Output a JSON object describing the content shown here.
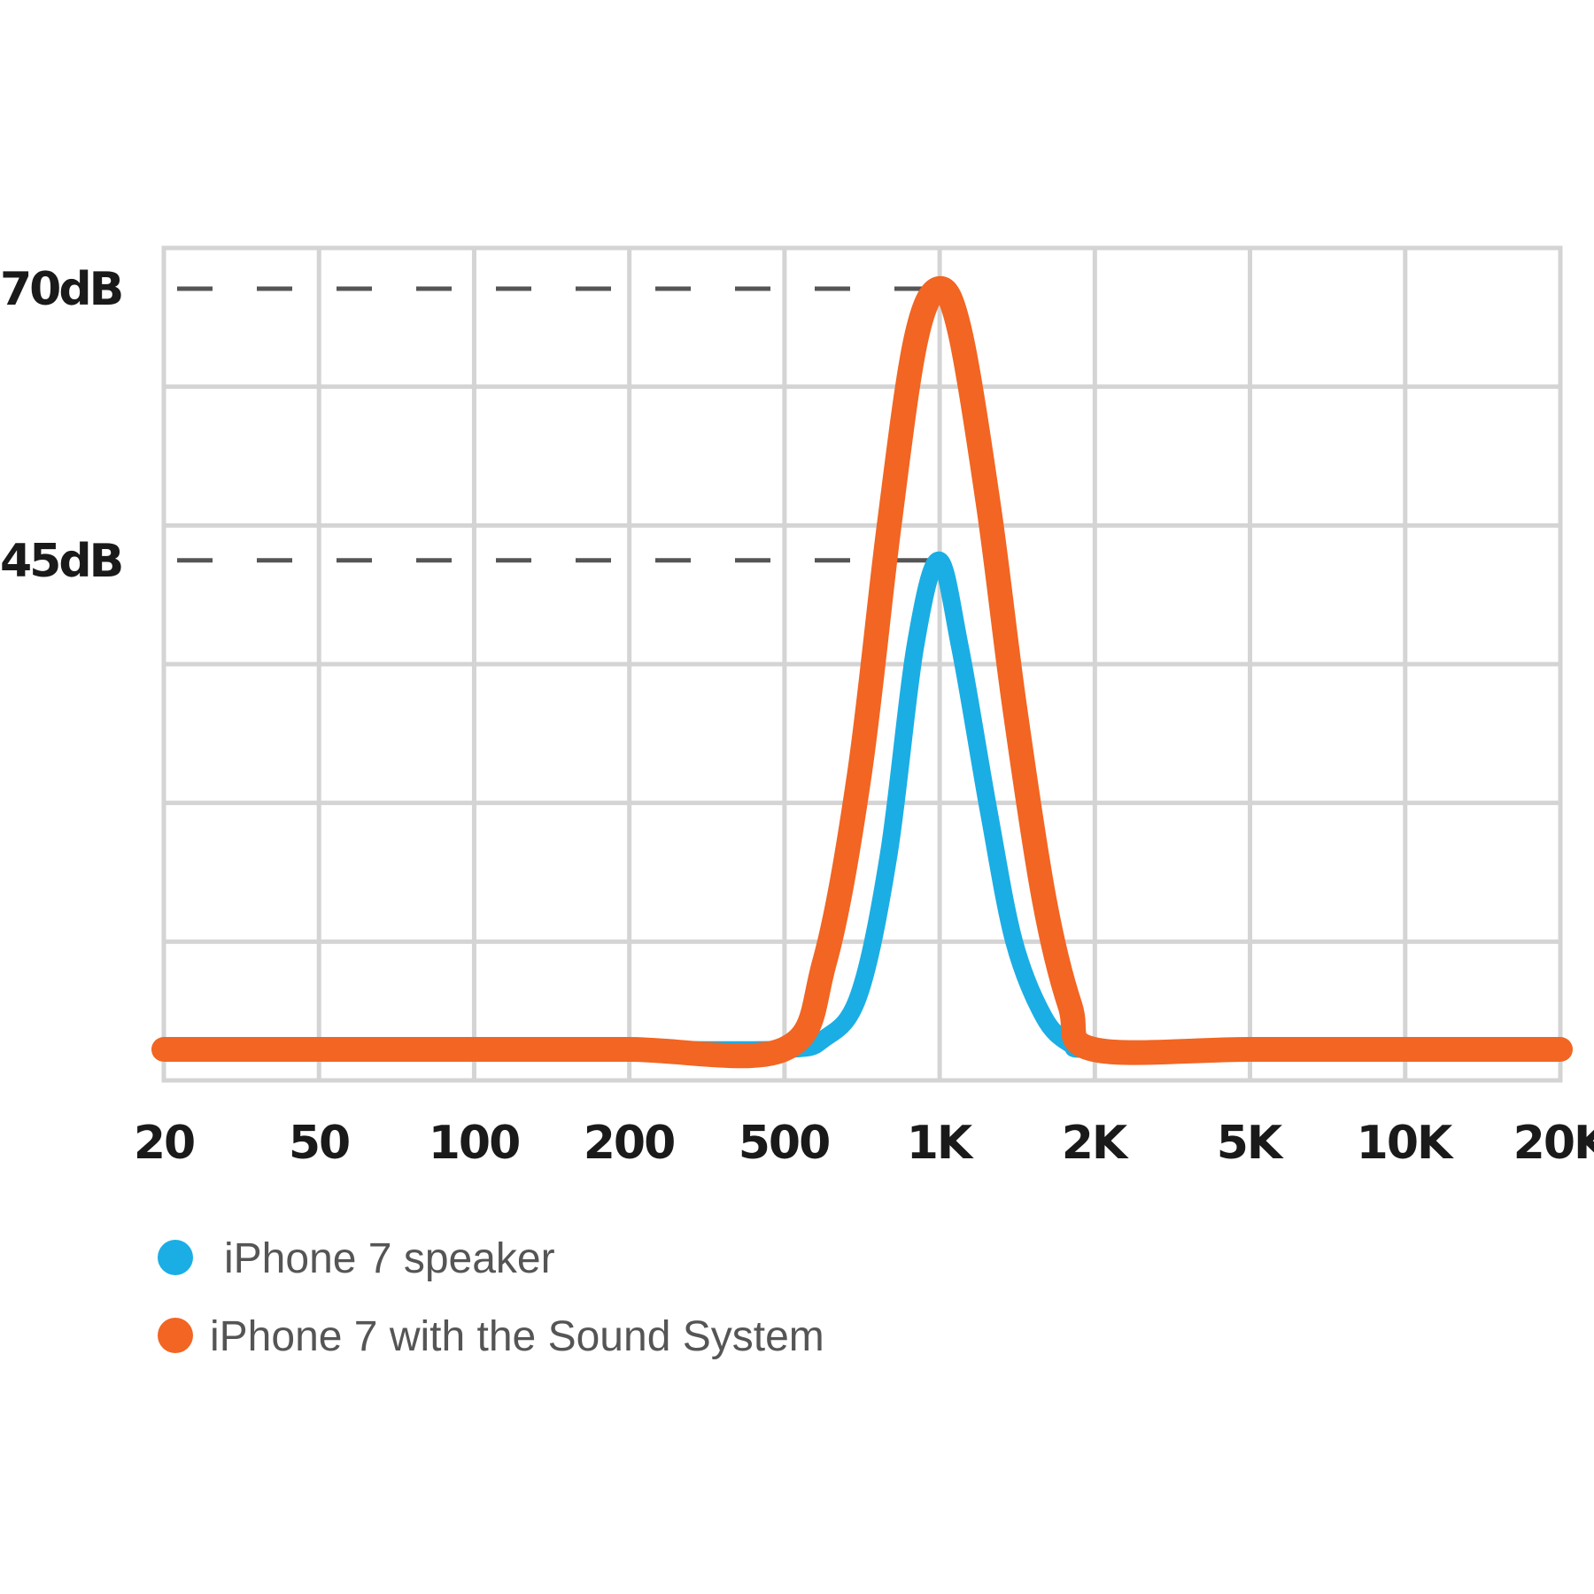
{
  "chart_data": {
    "type": "line",
    "title": "",
    "xlabel": "",
    "ylabel": "",
    "x_scale": "log",
    "x_ticks": [
      {
        "value": 20,
        "label": "20"
      },
      {
        "value": 50,
        "label": "50"
      },
      {
        "value": 100,
        "label": "100"
      },
      {
        "value": 200,
        "label": "200"
      },
      {
        "value": 500,
        "label": "500"
      },
      {
        "value": 1000,
        "label": "1K"
      },
      {
        "value": 2000,
        "label": "2K"
      },
      {
        "value": 5000,
        "label": "5K"
      },
      {
        "value": 10000,
        "label": "10K"
      },
      {
        "value": 20000,
        "label": "20K"
      }
    ],
    "y_ticks": [
      {
        "value": 70,
        "label": "70dB"
      },
      {
        "value": 45,
        "label": "45dB"
      }
    ],
    "ylim": [
      0,
      75
    ],
    "grid": true,
    "legend_position": "bottom-left",
    "series": [
      {
        "name": "iPhone 7 speaker",
        "color": "#1aaee5",
        "x": [
          20,
          50,
          100,
          200,
          500,
          600,
          700,
          800,
          900,
          1000,
          1100,
          1250,
          1400,
          1600,
          1800,
          2000,
          5000,
          10000,
          20000
        ],
        "y": [
          0,
          0,
          0,
          0,
          0,
          1,
          5,
          18,
          37,
          45,
          37,
          22,
          10,
          3,
          0.5,
          0,
          0,
          0,
          0
        ]
      },
      {
        "name": "iPhone 7 with the Sound System",
        "color": "#f26522",
        "x": [
          20,
          50,
          100,
          200,
          500,
          600,
          700,
          800,
          900,
          1000,
          1100,
          1250,
          1400,
          1600,
          1800,
          2000,
          5000,
          10000,
          20000
        ],
        "y": [
          0,
          0,
          0,
          0,
          0,
          8,
          25,
          48,
          65,
          70,
          66,
          50,
          32,
          14,
          4,
          0,
          0,
          0,
          0
        ]
      }
    ]
  }
}
